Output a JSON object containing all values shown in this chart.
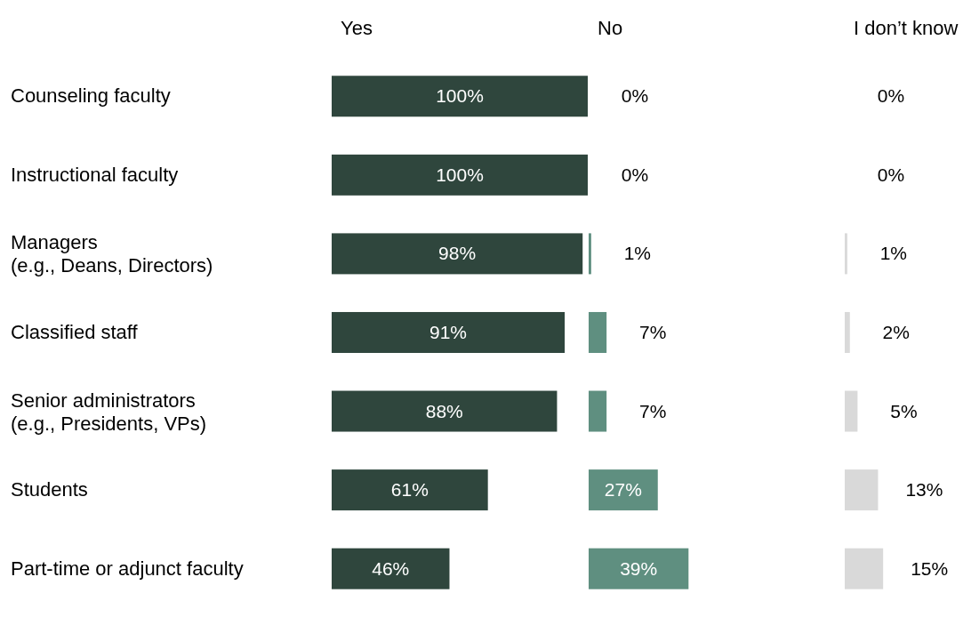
{
  "chart_data": [
    {
      "type": "bar",
      "orientation": "horizontal",
      "title": "Yes",
      "categories": [
        "Counseling faculty",
        "Instructional faculty",
        "Managers\n(e.g., Deans, Directors)",
        "Classified staff",
        "Senior administrators\n(e.g., Presidents, VPs)",
        "Students",
        "Part-time or adjunct faculty"
      ],
      "values": [
        100,
        100,
        98,
        91,
        88,
        61,
        46
      ],
      "color": "#2f463d",
      "value_labels": [
        "100%",
        "100%",
        "98%",
        "91%",
        "88%",
        "61%",
        "46%"
      ],
      "tick_labels": "y"
    },
    {
      "type": "bar",
      "orientation": "horizontal",
      "title": "No",
      "values": [
        0,
        0,
        1,
        7,
        7,
        27,
        39
      ],
      "color": "#5f8f80",
      "value_labels": [
        "0%",
        "0%",
        "1%",
        "7%",
        "7%",
        "27%",
        "39%"
      ],
      "tick_labels": false
    },
    {
      "type": "bar",
      "orientation": "horizontal",
      "title": "I don’t know",
      "values": [
        0,
        0,
        1,
        2,
        5,
        13,
        15
      ],
      "color": "#d9d9d9",
      "value_labels": [
        "0%",
        "0%",
        "1%",
        "2%",
        "5%",
        "13%",
        "15%"
      ],
      "tick_labels": false
    }
  ]
}
